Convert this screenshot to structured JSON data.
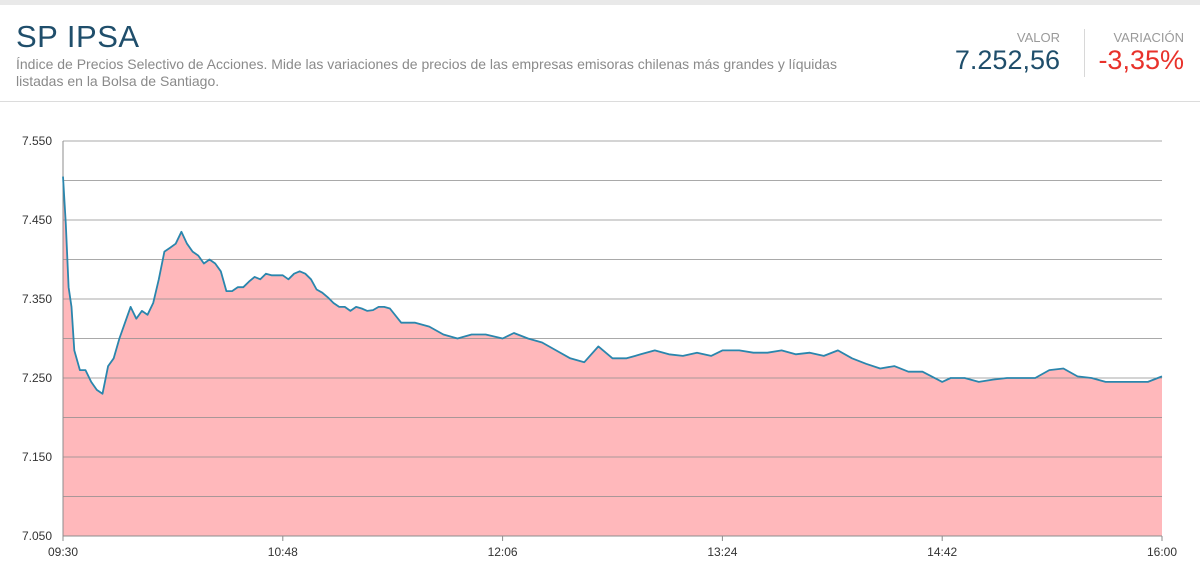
{
  "header": {
    "title": "SP IPSA",
    "description": "Índice de Precios Selectivo de Acciones. Mide las variaciones de precios de las empresas emisoras chilenas más grandes y líquidas listadas en la Bolsa de Santiago.",
    "valor_label": "VALOR",
    "valor": "7.252,56",
    "variacion_label": "VARIACIÓN",
    "variacion": "-3,35%"
  },
  "colors": {
    "title": "#1f4e6b",
    "valor": "#1f4e6b",
    "variacion": "#e8322b",
    "line": "#2a86ad",
    "area": "#ffb8bb"
  },
  "chart_data": {
    "type": "area",
    "ylim": [
      7050,
      7550
    ],
    "yticks": [
      "7.550",
      "7.450",
      "7.350",
      "7.250",
      "7.150",
      "7.050"
    ],
    "ytick_values": [
      7550,
      7450,
      7350,
      7250,
      7150,
      7050
    ],
    "grid_values": [
      7550,
      7500,
      7450,
      7400,
      7350,
      7300,
      7250,
      7200,
      7150,
      7100,
      7050
    ],
    "xticks": [
      "09:30",
      "10:48",
      "12:06",
      "13:24",
      "14:42",
      "16:00"
    ],
    "xlim": [
      "09:30",
      "16:00"
    ],
    "grid": true,
    "series": [
      {
        "x": [
          "09:30",
          "09:31",
          "09:32",
          "09:33",
          "09:34",
          "09:36",
          "09:38",
          "09:40",
          "09:42",
          "09:44",
          "09:46",
          "09:48",
          "09:50",
          "09:52",
          "09:54",
          "09:56",
          "09:58",
          "10:00",
          "10:02",
          "10:04",
          "10:06",
          "10:08",
          "10:10",
          "10:12",
          "10:14",
          "10:16",
          "10:18",
          "10:20",
          "10:22",
          "10:24",
          "10:26",
          "10:28",
          "10:30",
          "10:32",
          "10:34",
          "10:36",
          "10:38",
          "10:40",
          "10:42",
          "10:44",
          "10:46",
          "10:48",
          "10:50",
          "10:52",
          "10:54",
          "10:56",
          "10:58",
          "11:00",
          "11:02",
          "11:04",
          "11:06",
          "11:08",
          "11:10",
          "11:12",
          "11:14",
          "11:16",
          "11:18",
          "11:20",
          "11:22",
          "11:24",
          "11:26",
          "11:30",
          "11:35",
          "11:40",
          "11:45",
          "11:50",
          "11:55",
          "12:00",
          "12:06",
          "12:10",
          "12:15",
          "12:20",
          "12:25",
          "12:30",
          "12:35",
          "12:40",
          "12:45",
          "12:50",
          "12:55",
          "13:00",
          "13:05",
          "13:10",
          "13:15",
          "13:20",
          "13:24",
          "13:30",
          "13:35",
          "13:40",
          "13:45",
          "13:50",
          "13:55",
          "14:00",
          "14:05",
          "14:10",
          "14:15",
          "14:20",
          "14:25",
          "14:30",
          "14:35",
          "14:42",
          "14:45",
          "14:50",
          "14:55",
          "15:00",
          "15:05",
          "15:10",
          "15:15",
          "15:20",
          "15:25",
          "15:30",
          "15:35",
          "15:40",
          "15:45",
          "15:50",
          "15:55",
          "16:00"
        ],
        "values": [
          7505,
          7445,
          7365,
          7340,
          7285,
          7260,
          7260,
          7245,
          7235,
          7230,
          7265,
          7275,
          7300,
          7320,
          7340,
          7325,
          7335,
          7330,
          7345,
          7375,
          7410,
          7415,
          7420,
          7435,
          7420,
          7410,
          7405,
          7395,
          7400,
          7395,
          7385,
          7360,
          7360,
          7365,
          7365,
          7372,
          7378,
          7375,
          7382,
          7380,
          7380,
          7380,
          7375,
          7382,
          7385,
          7382,
          7375,
          7362,
          7358,
          7352,
          7345,
          7340,
          7340,
          7335,
          7340,
          7338,
          7335,
          7336,
          7340,
          7340,
          7338,
          7320,
          7320,
          7315,
          7305,
          7300,
          7305,
          7305,
          7300,
          7307,
          7300,
          7295,
          7285,
          7275,
          7270,
          7290,
          7275,
          7275,
          7280,
          7285,
          7280,
          7278,
          7282,
          7278,
          7285,
          7285,
          7282,
          7282,
          7285,
          7280,
          7282,
          7278,
          7285,
          7275,
          7268,
          7262,
          7265,
          7258,
          7258,
          7245,
          7250,
          7250,
          7245,
          7248,
          7250,
          7250,
          7250,
          7260,
          7262,
          7252,
          7250,
          7245,
          7245,
          7245,
          7245,
          7252
        ]
      }
    ]
  }
}
